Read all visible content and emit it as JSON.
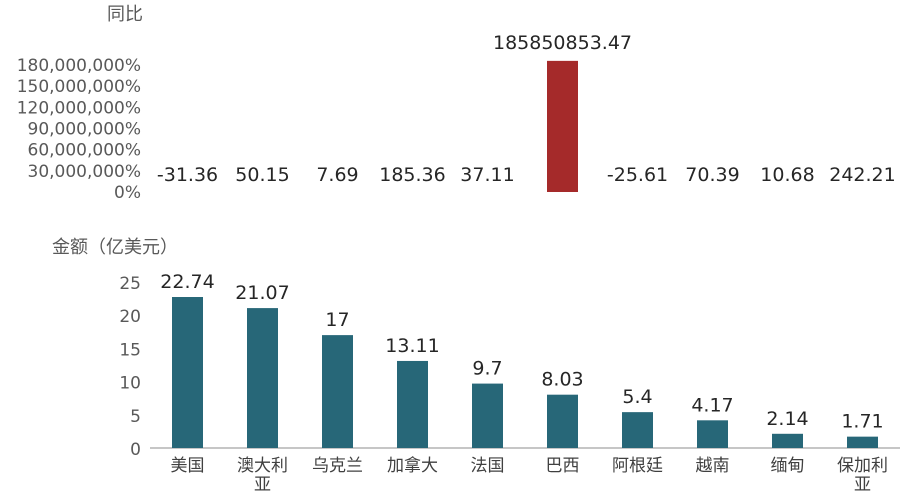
{
  "chart_data": [
    {
      "type": "bar",
      "title": "同比",
      "categories": [
        "美国",
        "澳大利亚",
        "乌克兰",
        "加拿大",
        "法国",
        "巴西",
        "阿根廷",
        "越南",
        "缅甸",
        "保加利亚"
      ],
      "values": [
        -31.36,
        50.15,
        7.69,
        185.36,
        37.11,
        185850853.47,
        -25.61,
        70.39,
        10.68,
        242.21
      ],
      "value_labels": [
        "-31.36",
        "50.15",
        "7.69",
        "185.36",
        "37.11",
        "185850853.47",
        "-25.61",
        "70.39",
        "10.68",
        "242.21"
      ],
      "yticks": [
        "0%",
        "30,000,000%",
        "60,000,000%",
        "90,000,000%",
        "120,000,000%",
        "150,000,000%",
        "180,000,000%"
      ],
      "ylim": [
        0,
        180000000
      ],
      "grid": false,
      "colors": {
        "bar": "#A52A2A"
      }
    },
    {
      "type": "bar",
      "title": "金额（亿美元）",
      "categories": [
        "美国",
        "澳大利亚",
        "乌克兰",
        "加拿大",
        "法国",
        "巴西",
        "阿根廷",
        "越南",
        "缅甸",
        "保加利亚"
      ],
      "category_lines": [
        [
          "美国"
        ],
        [
          "澳大利",
          "亚"
        ],
        [
          "乌克兰"
        ],
        [
          "加拿大"
        ],
        [
          "法国"
        ],
        [
          "巴西"
        ],
        [
          "阿根廷"
        ],
        [
          "越南"
        ],
        [
          "缅甸"
        ],
        [
          "保加利",
          "亚"
        ]
      ],
      "values": [
        22.74,
        21.07,
        17,
        13.11,
        9.7,
        8.03,
        5.4,
        4.17,
        2.14,
        1.71
      ],
      "value_labels": [
        "22.74",
        "21.07",
        "17",
        "13.11",
        "9.7",
        "8.03",
        "5.4",
        "4.17",
        "2.14",
        "1.71"
      ],
      "yticks": [
        "0",
        "5",
        "10",
        "15",
        "20",
        "25"
      ],
      "ylim": [
        0,
        25
      ],
      "grid": false,
      "colors": {
        "bar": "#276778"
      }
    }
  ]
}
